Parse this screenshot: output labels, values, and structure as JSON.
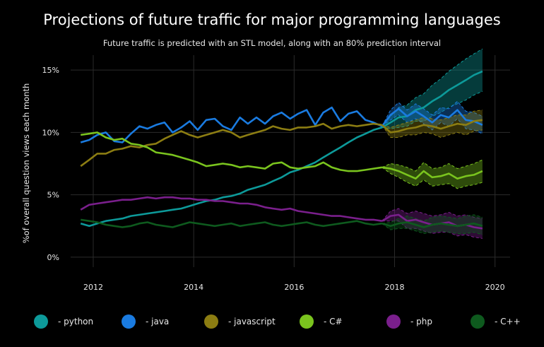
{
  "chart_data": {
    "type": "line",
    "title": "Projections of future traffic for major programming languages",
    "subtitle": "Future traffic is predicted with an STL model, along with an 80% prediction interval",
    "xlabel": "",
    "ylabel": "%of overall question views each month",
    "xlim": [
      2011.55,
      2020.3
    ],
    "ylim": [
      -0.8,
      16.2
    ],
    "x_ticks": [
      2012,
      2014,
      2016,
      2018,
      2020
    ],
    "x_tick_labels": [
      "2012",
      "2014",
      "2016",
      "2018",
      "2020"
    ],
    "y_ticks": [
      0,
      5,
      10,
      15
    ],
    "y_tick_labels": [
      "0%",
      "5%",
      "10%",
      "15%"
    ],
    "grid": true,
    "legend_position": "bottom",
    "history_x": [
      2011.75,
      2011.92,
      2012.08,
      2012.25,
      2012.42,
      2012.58,
      2012.75,
      2012.92,
      2013.08,
      2013.25,
      2013.42,
      2013.58,
      2013.75,
      2013.92,
      2014.08,
      2014.25,
      2014.42,
      2014.58,
      2014.75,
      2014.92,
      2015.08,
      2015.25,
      2015.42,
      2015.58,
      2015.75,
      2015.92,
      2016.08,
      2016.25,
      2016.42,
      2016.58,
      2016.75,
      2016.92,
      2017.08,
      2017.25,
      2017.42,
      2017.58,
      2017.75
    ],
    "forecast_x": [
      2017.75,
      2017.92,
      2018.08,
      2018.25,
      2018.42,
      2018.58,
      2018.75,
      2018.92,
      2019.08,
      2019.25,
      2019.42,
      2019.58,
      2019.75
    ],
    "series": [
      {
        "name": "python",
        "label": "- python",
        "color": "#0d9a9a",
        "history": [
          2.7,
          2.5,
          2.7,
          2.9,
          3.0,
          3.1,
          3.3,
          3.4,
          3.5,
          3.6,
          3.7,
          3.8,
          3.9,
          4.1,
          4.3,
          4.5,
          4.6,
          4.8,
          4.9,
          5.1,
          5.4,
          5.6,
          5.8,
          6.1,
          6.4,
          6.8,
          7.0,
          7.3,
          7.6,
          8.0,
          8.4,
          8.8,
          9.2,
          9.6,
          9.9,
          10.2,
          10.4
        ],
        "forecast": [
          10.4,
          10.8,
          11.2,
          11.3,
          11.8,
          12.0,
          12.5,
          12.9,
          13.4,
          13.8,
          14.2,
          14.6,
          14.9
        ],
        "lower": [
          10.4,
          10.3,
          10.4,
          10.5,
          10.9,
          10.9,
          11.3,
          11.6,
          12.0,
          12.3,
          12.6,
          13.0,
          13.3
        ],
        "upper": [
          10.4,
          11.3,
          12.0,
          12.2,
          12.8,
          13.1,
          13.8,
          14.3,
          14.9,
          15.4,
          15.9,
          16.3,
          16.7
        ]
      },
      {
        "name": "java",
        "label": "- java",
        "color": "#1a7be0",
        "history": [
          9.2,
          9.4,
          9.8,
          10.0,
          9.3,
          9.2,
          9.9,
          10.5,
          10.3,
          10.6,
          10.8,
          10.0,
          10.4,
          10.9,
          10.2,
          11.0,
          11.1,
          10.5,
          10.2,
          11.2,
          10.7,
          11.2,
          10.7,
          11.3,
          11.6,
          11.1,
          11.5,
          11.8,
          10.6,
          11.6,
          12.0,
          10.9,
          11.5,
          11.7,
          11.0,
          10.8,
          10.5
        ],
        "forecast": [
          10.5,
          11.4,
          11.9,
          11.3,
          11.7,
          11.3,
          10.8,
          11.4,
          11.2,
          11.8,
          11.0,
          10.9,
          10.6
        ],
        "lower": [
          10.5,
          11.0,
          11.4,
          10.8,
          11.1,
          10.7,
          10.2,
          10.8,
          10.5,
          11.1,
          10.3,
          10.2,
          9.9
        ],
        "upper": [
          10.5,
          11.8,
          12.4,
          11.8,
          12.3,
          11.9,
          11.4,
          12.0,
          11.9,
          12.5,
          11.7,
          11.6,
          11.3
        ]
      },
      {
        "name": "javascript",
        "label": "- javascript",
        "color": "#8c7d12",
        "history": [
          7.3,
          7.8,
          8.3,
          8.3,
          8.6,
          8.7,
          8.9,
          8.8,
          9.0,
          9.1,
          9.5,
          9.8,
          10.1,
          9.8,
          9.6,
          9.8,
          10.0,
          10.2,
          10.0,
          9.6,
          9.8,
          10.0,
          10.2,
          10.5,
          10.3,
          10.2,
          10.4,
          10.4,
          10.5,
          10.7,
          10.3,
          10.5,
          10.6,
          10.5,
          10.6,
          10.7,
          10.6
        ],
        "forecast": [
          10.6,
          10.0,
          10.1,
          10.3,
          10.4,
          10.6,
          10.5,
          10.3,
          10.5,
          10.7,
          10.6,
          10.9,
          11.0
        ],
        "lower": [
          10.6,
          9.6,
          9.6,
          9.8,
          9.8,
          10.0,
          9.9,
          9.6,
          9.8,
          10.0,
          9.8,
          10.1,
          10.2
        ],
        "upper": [
          10.6,
          10.4,
          10.6,
          10.8,
          11.0,
          11.2,
          11.1,
          11.0,
          11.2,
          11.4,
          11.4,
          11.7,
          11.8
        ]
      },
      {
        "name": "C#",
        "label": "- C#",
        "color": "#7ac41e",
        "history": [
          9.8,
          9.9,
          10.0,
          9.6,
          9.4,
          9.5,
          9.1,
          9.0,
          8.8,
          8.4,
          8.3,
          8.2,
          8.0,
          7.8,
          7.6,
          7.3,
          7.4,
          7.5,
          7.4,
          7.2,
          7.3,
          7.2,
          7.1,
          7.5,
          7.6,
          7.2,
          7.1,
          7.2,
          7.3,
          7.6,
          7.2,
          7.0,
          6.9,
          6.9,
          7.0,
          7.1,
          7.2
        ],
        "forecast": [
          7.2,
          7.1,
          6.9,
          6.6,
          6.3,
          6.9,
          6.4,
          6.5,
          6.7,
          6.3,
          6.5,
          6.6,
          6.9
        ],
        "lower": [
          7.2,
          6.7,
          6.4,
          6.0,
          5.7,
          6.2,
          5.7,
          5.8,
          5.9,
          5.5,
          5.7,
          5.8,
          6.0
        ],
        "upper": [
          7.2,
          7.5,
          7.4,
          7.2,
          6.9,
          7.6,
          7.1,
          7.2,
          7.5,
          7.1,
          7.3,
          7.5,
          7.8
        ]
      },
      {
        "name": "php",
        "label": "- php",
        "color": "#7a1f8c",
        "history": [
          3.8,
          4.2,
          4.3,
          4.4,
          4.5,
          4.6,
          4.6,
          4.7,
          4.8,
          4.7,
          4.8,
          4.8,
          4.7,
          4.7,
          4.6,
          4.6,
          4.5,
          4.5,
          4.4,
          4.3,
          4.3,
          4.2,
          4.0,
          3.9,
          3.8,
          3.9,
          3.7,
          3.6,
          3.5,
          3.4,
          3.3,
          3.3,
          3.2,
          3.1,
          3.0,
          3.0,
          2.9
        ],
        "forecast": [
          2.9,
          3.3,
          3.4,
          2.9,
          3.0,
          2.8,
          2.6,
          2.7,
          2.8,
          2.5,
          2.6,
          2.4,
          2.3
        ],
        "lower": [
          2.9,
          2.9,
          2.9,
          2.3,
          2.3,
          2.1,
          1.9,
          2.0,
          2.0,
          1.7,
          1.8,
          1.6,
          1.5
        ],
        "upper": [
          2.9,
          3.7,
          3.9,
          3.5,
          3.7,
          3.5,
          3.3,
          3.4,
          3.6,
          3.3,
          3.4,
          3.2,
          3.1
        ]
      },
      {
        "name": "C++",
        "label": "- C++",
        "color": "#0e5a1e",
        "history": [
          3.0,
          2.9,
          2.8,
          2.6,
          2.5,
          2.4,
          2.5,
          2.7,
          2.8,
          2.6,
          2.5,
          2.4,
          2.6,
          2.8,
          2.7,
          2.6,
          2.5,
          2.6,
          2.7,
          2.5,
          2.6,
          2.7,
          2.8,
          2.6,
          2.5,
          2.6,
          2.7,
          2.8,
          2.6,
          2.5,
          2.6,
          2.7,
          2.8,
          2.9,
          2.7,
          2.6,
          2.7
        ],
        "forecast": [
          2.7,
          2.5,
          2.7,
          2.8,
          2.6,
          2.4,
          2.6,
          2.7,
          2.6,
          2.5,
          2.6,
          2.7,
          2.5
        ],
        "lower": [
          2.7,
          2.2,
          2.3,
          2.3,
          2.1,
          1.9,
          2.0,
          2.1,
          2.0,
          1.9,
          1.9,
          2.0,
          1.8
        ],
        "upper": [
          2.7,
          2.8,
          3.1,
          3.3,
          3.1,
          2.9,
          3.2,
          3.3,
          3.2,
          3.1,
          3.3,
          3.4,
          3.2
        ]
      }
    ]
  }
}
